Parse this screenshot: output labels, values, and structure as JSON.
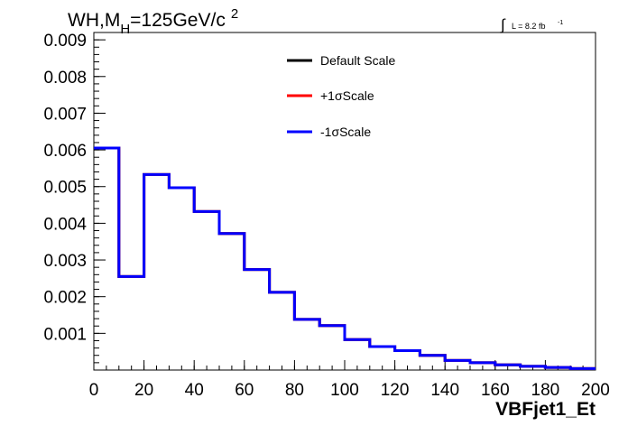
{
  "chart_data": {
    "type": "step",
    "title_main": "WH,M",
    "title_sub": "H",
    "title_rest": "=125GeV/c",
    "title_sup": "2",
    "lumi_integral": "∫",
    "lumi_text": "L = 8.2 fb",
    "lumi_sup": "-1",
    "xlabel": "VBFjet1_Et",
    "ylabel": "",
    "xlim": [
      0,
      200
    ],
    "ylim": [
      0,
      0.0092
    ],
    "xticks": [
      0,
      20,
      40,
      60,
      80,
      100,
      120,
      140,
      160,
      180,
      200
    ],
    "xtick_labels": [
      "0",
      "20",
      "40",
      "60",
      "80",
      "100",
      "120",
      "140",
      "160",
      "180",
      "200"
    ],
    "yticks": [
      0.001,
      0.002,
      0.003,
      0.004,
      0.005,
      0.006,
      0.007,
      0.008,
      0.009
    ],
    "ytick_labels": [
      "0.001",
      "0.002",
      "0.003",
      "0.004",
      "0.005",
      "0.006",
      "0.007",
      "0.008",
      "0.009"
    ],
    "bin_edges": [
      0,
      10,
      20,
      30,
      40,
      50,
      60,
      70,
      80,
      90,
      100,
      110,
      120,
      130,
      140,
      150,
      160,
      170,
      180,
      190,
      200
    ],
    "series": [
      {
        "name": "Default Scale",
        "color": "#000000",
        "values": [
          0.00605,
          0.00255,
          0.00533,
          0.00497,
          0.00432,
          0.00372,
          0.00274,
          0.00212,
          0.00138,
          0.00121,
          0.00083,
          0.00064,
          0.00053,
          0.0004,
          0.00026,
          0.0002,
          0.00014,
          0.0001,
          7e-05,
          4e-05
        ]
      },
      {
        "name": "+1σScale",
        "color": "#ff0000",
        "values": [
          0.00605,
          0.00255,
          0.00533,
          0.00497,
          0.00432,
          0.00372,
          0.00274,
          0.00212,
          0.00138,
          0.00121,
          0.00083,
          0.00064,
          0.00053,
          0.0004,
          0.00026,
          0.0002,
          0.00014,
          0.0001,
          7e-05,
          4e-05
        ]
      },
      {
        "name": "-1σScale",
        "color": "#0000ff",
        "values": [
          0.00605,
          0.00255,
          0.00533,
          0.00497,
          0.00432,
          0.00372,
          0.00274,
          0.00212,
          0.00138,
          0.00121,
          0.00083,
          0.00064,
          0.00053,
          0.0004,
          0.00026,
          0.0002,
          0.00014,
          0.0001,
          7e-05,
          4e-05
        ]
      }
    ],
    "legend_position": "top-center"
  }
}
